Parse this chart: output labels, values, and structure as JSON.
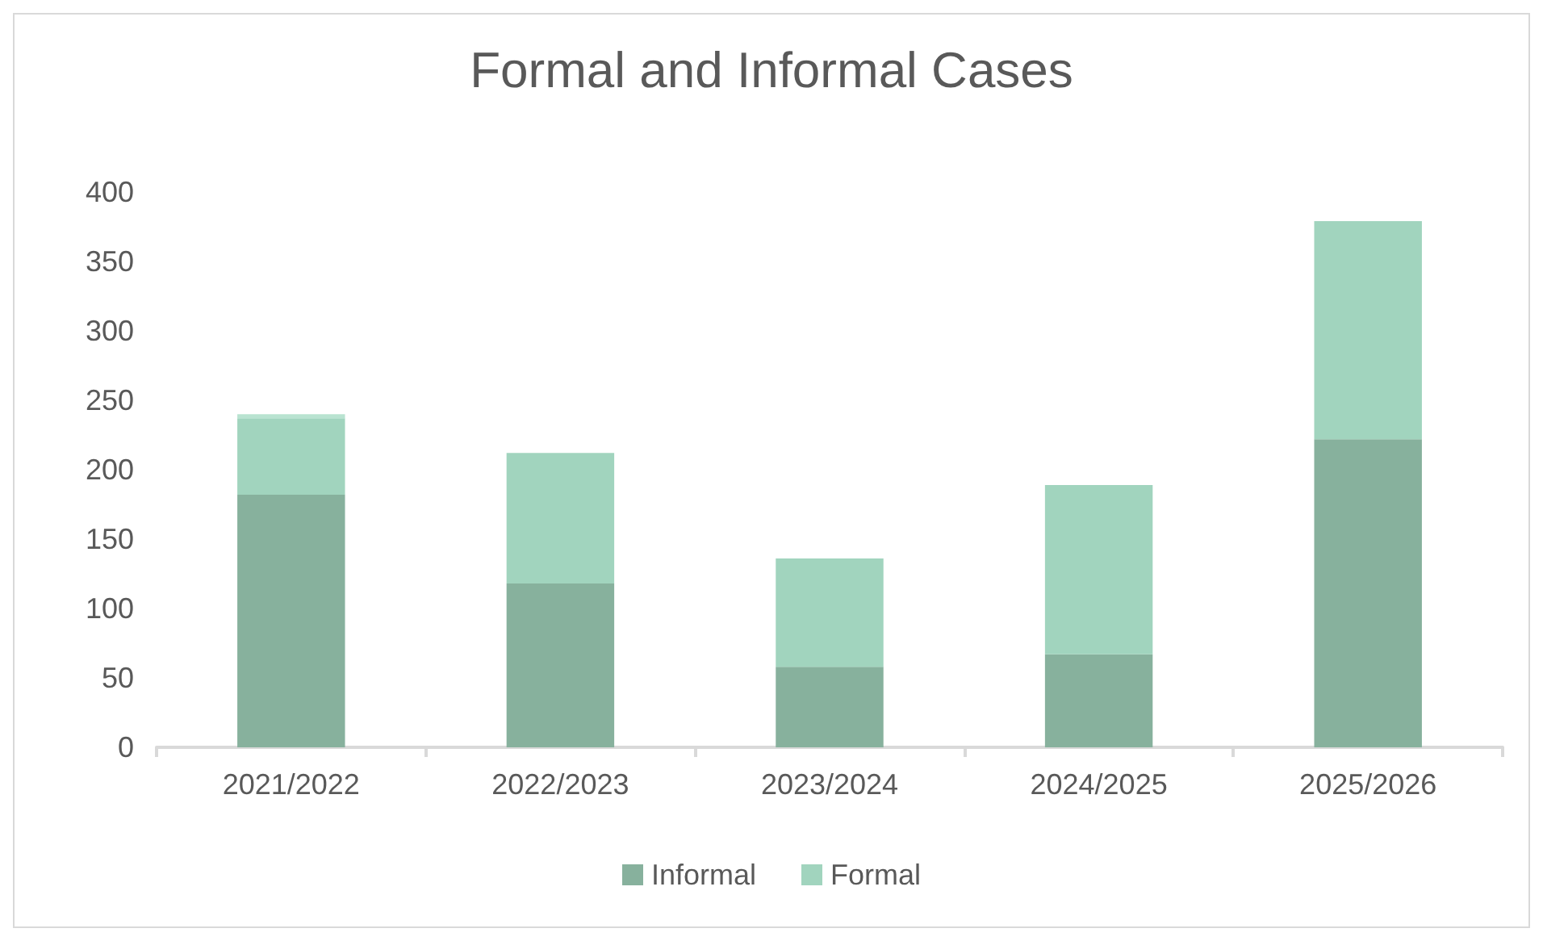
{
  "chart_data": {
    "type": "bar",
    "title": "Formal and Informal Cases",
    "categories": [
      "2021/2022",
      "2022/2023",
      "2023/2024",
      "2024/2025",
      "2025/2026"
    ],
    "stacked": true,
    "series": [
      {
        "name": "Informal",
        "color": "#87b19d",
        "values": [
          182,
          118,
          58,
          67,
          222
        ]
      },
      {
        "name": "Formal",
        "color": "#a1d4be",
        "values": [
          55,
          94,
          78,
          122,
          157
        ]
      },
      {
        "color": "#b9e3d1",
        "values": [
          3,
          null,
          null,
          null,
          null
        ]
      }
    ],
    "ylim": [
      0,
      400
    ],
    "yticks": [
      0,
      50,
      100,
      150,
      200,
      250,
      300,
      350,
      400
    ],
    "grid": false,
    "legend": "bottom"
  }
}
